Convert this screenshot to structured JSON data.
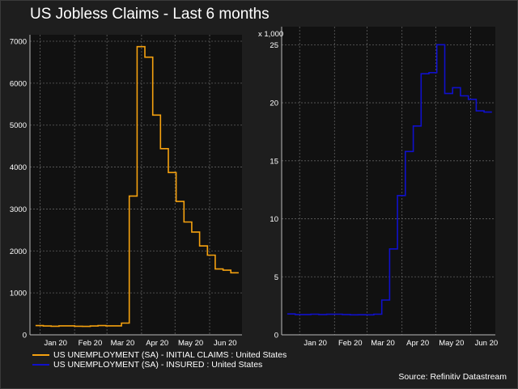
{
  "title": "US Jobless Claims - Last 6 months",
  "source": "Source: Refinitiv Datastream",
  "colors": {
    "background": "#1e1e1e",
    "plot_bg": "#111111",
    "orange": "#f5a10f",
    "blue": "#1010cc",
    "grid": "#606060"
  },
  "legend": [
    {
      "label": "US UNEMPLOYMENT (SA) - INITIAL CLAIMS : United States",
      "color": "#f5a10f"
    },
    {
      "label": "US UNEMPLOYMENT (SA) - INSURED : United States",
      "color": "#1010cc"
    }
  ],
  "chart_data": [
    {
      "type": "line",
      "step": true,
      "series": [
        {
          "color": "#f5a10f",
          "x": [
            "2019-12-28",
            "2020-01-04",
            "2020-01-11",
            "2020-01-18",
            "2020-01-25",
            "2020-02-01",
            "2020-02-08",
            "2020-02-15",
            "2020-02-22",
            "2020-02-29",
            "2020-03-07",
            "2020-03-14",
            "2020-03-21",
            "2020-03-28",
            "2020-04-04",
            "2020-04-11",
            "2020-04-18",
            "2020-04-25",
            "2020-05-02",
            "2020-05-09",
            "2020-05-16",
            "2020-05-23",
            "2020-05-30",
            "2020-06-06",
            "2020-06-13",
            "2020-06-20"
          ],
          "values": [
            220,
            210,
            205,
            215,
            215,
            205,
            200,
            210,
            220,
            215,
            215,
            280,
            3310,
            6870,
            6620,
            5240,
            4440,
            3870,
            3180,
            2690,
            2450,
            2120,
            1900,
            1570,
            1540,
            1480
          ]
        }
      ],
      "x_ticks": [
        "Jan 20",
        "Feb 20",
        "Mar 20",
        "Apr 20",
        "May 20",
        "Jun 20"
      ],
      "y_ticks": [
        "0",
        "1000",
        "2000",
        "3000",
        "4000",
        "5000",
        "6000",
        "7000"
      ],
      "ylim": [
        0,
        7000
      ],
      "xlim": [
        "2019-12-23",
        "2020-06-30"
      ],
      "grid": true
    },
    {
      "type": "line",
      "step": true,
      "unit_label": "x 1,000",
      "series": [
        {
          "color": "#1010cc",
          "x": [
            "2019-12-21",
            "2019-12-28",
            "2020-01-04",
            "2020-01-11",
            "2020-01-18",
            "2020-01-25",
            "2020-02-01",
            "2020-02-08",
            "2020-02-15",
            "2020-02-22",
            "2020-02-29",
            "2020-03-07",
            "2020-03-14",
            "2020-03-21",
            "2020-03-28",
            "2020-04-04",
            "2020-04-11",
            "2020-04-18",
            "2020-04-25",
            "2020-05-02",
            "2020-05-09",
            "2020-05-16",
            "2020-05-23",
            "2020-05-30",
            "2020-06-06",
            "2020-06-13"
          ],
          "values": [
            1.8,
            1.75,
            1.75,
            1.78,
            1.75,
            1.77,
            1.78,
            1.75,
            1.72,
            1.73,
            1.72,
            1.78,
            3.0,
            7.4,
            12.0,
            15.8,
            18.0,
            22.5,
            22.6,
            25.0,
            20.8,
            21.3,
            20.6,
            20.3,
            19.3,
            19.2
          ]
        }
      ],
      "x_ticks": [
        "Jan 20",
        "Feb 20",
        "Mar 20",
        "Apr 20",
        "May 20",
        "Jun 20"
      ],
      "y_ticks": [
        "0",
        "5",
        "10",
        "15",
        "20",
        "25"
      ],
      "ylim": [
        0,
        26
      ],
      "xlim": [
        "2019-12-16",
        "2020-06-23"
      ],
      "grid": true
    }
  ]
}
